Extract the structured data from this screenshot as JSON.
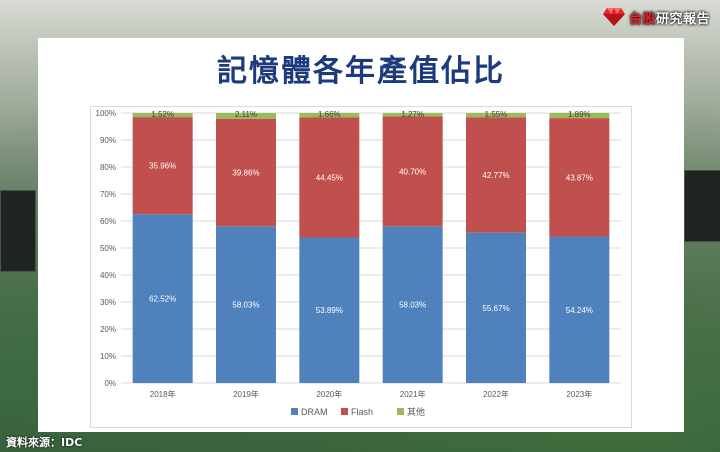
{
  "title": "記憶體各年產值佔比",
  "brand": {
    "name_red": "台股",
    "name_white": "研究報告",
    "accent": "#e8232a"
  },
  "source": "資料來源：IDC",
  "chart_data": {
    "type": "bar",
    "stacked": true,
    "categories": [
      "2018年",
      "2019年",
      "2020年",
      "2021年",
      "2022年",
      "2023年"
    ],
    "series": [
      {
        "name": "DRAM",
        "color": "#4f81bd",
        "values": [
          62.52,
          58.03,
          53.89,
          58.03,
          55.67,
          54.24
        ],
        "labels": [
          "62.52%",
          "58.03%",
          "53.89%",
          "58.03%",
          "55.67%",
          "54.24%"
        ]
      },
      {
        "name": "Flash",
        "color": "#c0504d",
        "values": [
          35.96,
          39.86,
          44.45,
          40.7,
          42.77,
          43.87
        ],
        "labels": [
          "35.96%",
          "39.86%",
          "44.45%",
          "40.70%",
          "42.77%",
          "43.87%"
        ]
      },
      {
        "name": "其他",
        "color": "#9bbb59",
        "values": [
          1.52,
          2.11,
          1.66,
          1.27,
          1.55,
          1.89
        ],
        "labels": [
          "1.52%",
          "2.11%",
          "1.66%",
          "1.27%",
          "1.55%",
          "1.89%"
        ]
      }
    ],
    "yticks": [
      "0%",
      "10%",
      "20%",
      "30%",
      "40%",
      "50%",
      "60%",
      "70%",
      "80%",
      "90%",
      "100%"
    ],
    "ylim": [
      0,
      100
    ],
    "grid": true,
    "legend": "bottom"
  }
}
